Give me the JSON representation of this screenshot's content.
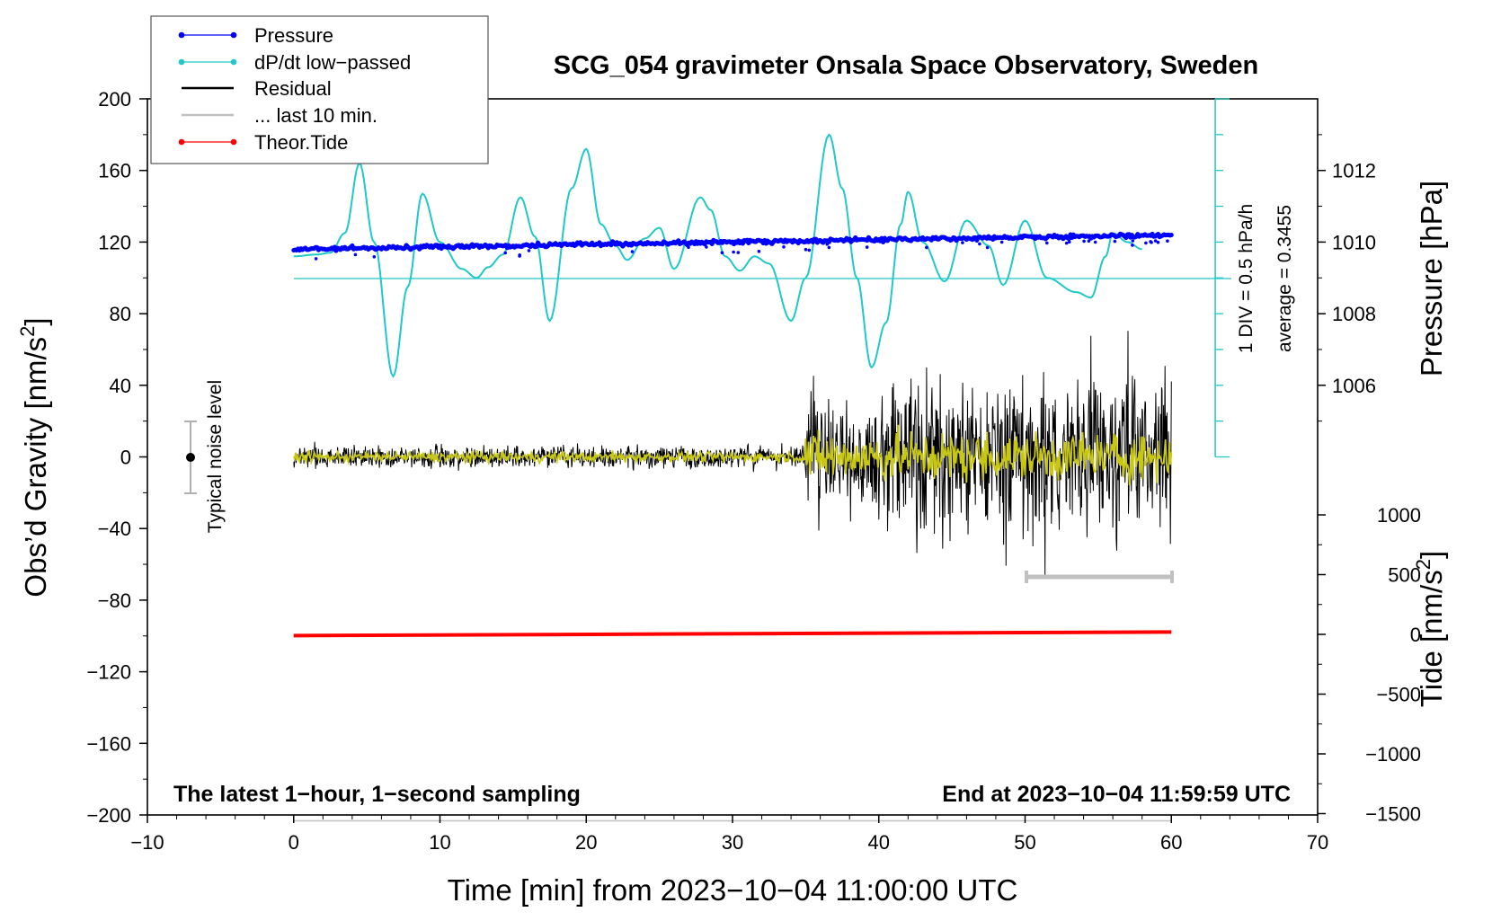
{
  "chart_data": {
    "type": "line",
    "title": "SCG_054 gravimeter Onsala Space Observatory, Sweden",
    "xlabel": "Time [min] from 2023−10−04 11:00:00 UTC",
    "ylabel_left": "Obs’d Gravity [nm/s",
    "ylabel_left_sup": "2",
    "ylabel_left_close": "]",
    "ylabel_right_pressure": "Pressure [hPa]",
    "ylabel_right_tide": "Tide [nm/s",
    "ylabel_right_tide_sup": "2",
    "ylabel_right_tide_close": "]",
    "xlim": [
      -10,
      70
    ],
    "ylim": [
      -200,
      200
    ],
    "x_ticks": [
      "−10",
      "0",
      "10",
      "20",
      "30",
      "40",
      "50",
      "60",
      "70"
    ],
    "y_ticks": [
      "200",
      "160",
      "120",
      "80",
      "40",
      "0",
      "−40",
      "−80",
      "−120",
      "−160",
      "−200"
    ],
    "pressure_ticks": [
      "1012",
      "1010",
      "1008",
      "1006"
    ],
    "pressure_range": [
      1004,
      1014
    ],
    "tide_ticks": [
      "1000",
      "500",
      "0",
      "−500",
      "−1000",
      "−1500"
    ],
    "tide_range": [
      -1500,
      1500
    ],
    "legend": [
      {
        "label": "Pressure",
        "color": "#0000ff",
        "style": "line-dot"
      },
      {
        "label": "dP/dt low−passed",
        "color": "#20c8c8",
        "style": "line-dot"
      },
      {
        "label": "Residual",
        "color": "#000000",
        "style": "line"
      },
      {
        "label": "... last 10 min.",
        "color": "#c0c0c0",
        "style": "line"
      },
      {
        "label": "Theor.Tide",
        "color": "#ff0000",
        "style": "line-dot"
      }
    ],
    "annotations": {
      "noise_label": "Typical noise level",
      "div_label": "1 DIV = 0.5 hPa/h",
      "avg_label": "average = 0.3455",
      "bottom_left": "The latest 1−hour, 1−second sampling",
      "bottom_right": "End at 2023−10−04 11:59:59 UTC"
    },
    "series": [
      {
        "name": "Pressure",
        "axis": "pressure_hPa",
        "x": [
          0,
          10,
          20,
          30,
          40,
          50,
          60
        ],
        "values": [
          1009.8,
          1009.85,
          1009.9,
          1010.0,
          1010.05,
          1010.1,
          1010.2
        ]
      },
      {
        "name": "dP/dt low−passed",
        "axis": "gravity_scale",
        "x": [
          0,
          1.5,
          2.5,
          3.5,
          4.5,
          5.5,
          6.8,
          7.8,
          8.8,
          10,
          11.5,
          12.5,
          13.3,
          14.3,
          15.5,
          16.5,
          17.5,
          19.0,
          20.0,
          21.0,
          22.0,
          22.8,
          24.0,
          25.0,
          26.0,
          27.8,
          28.5,
          29.5,
          30.5,
          31.5,
          32.5,
          34.0,
          35.0,
          36.6,
          37.5,
          38.5,
          39.5,
          40.5,
          41.5,
          42.0,
          43.0,
          44.5,
          46.0,
          47.5,
          48.5,
          50.0,
          51.5,
          53.5,
          54.5,
          55.5,
          56.0,
          57.0,
          58.0
        ],
        "values": [
          112,
          113,
          114,
          125,
          164,
          120,
          45,
          95,
          147,
          120,
          105,
          100,
          106,
          113,
          145,
          123,
          76,
          150,
          172,
          130,
          118,
          110,
          122,
          128,
          105,
          145,
          138,
          112,
          104,
          112,
          108,
          76,
          100,
          180,
          150,
          100,
          50,
          75,
          130,
          148,
          120,
          98,
          132,
          118,
          96,
          132,
          100,
          92,
          89,
          112,
          125,
          120,
          116
        ]
      },
      {
        "name": "Residual",
        "axis": "gravity",
        "x": [
          0,
          35,
          40,
          60
        ],
        "envelope": [
          6,
          8,
          45,
          60
        ]
      },
      {
        "name": "Theor.Tide",
        "axis": "tide",
        "x": [
          0,
          60
        ],
        "values": [
          -10,
          20
        ]
      }
    ]
  }
}
